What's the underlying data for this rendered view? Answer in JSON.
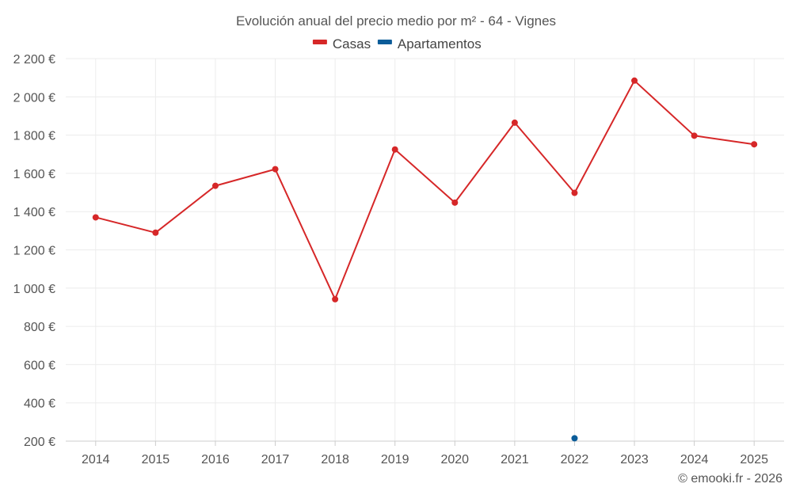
{
  "chart_data": {
    "type": "line",
    "title": "Evolución anual del precio medio por m² - 64 - Vignes",
    "xlabel": "",
    "ylabel": "",
    "categories": [
      "2014",
      "2015",
      "2016",
      "2017",
      "2018",
      "2019",
      "2020",
      "2021",
      "2022",
      "2023",
      "2024",
      "2025"
    ],
    "series": [
      {
        "name": "Casas",
        "color": "#d62728",
        "values": [
          1370,
          1290,
          1535,
          1622,
          942,
          1725,
          1447,
          1865,
          1498,
          2085,
          1797,
          1752
        ]
      },
      {
        "name": "Apartamentos",
        "color": "#0b5c99",
        "values": [
          null,
          null,
          null,
          null,
          null,
          null,
          null,
          null,
          215,
          null,
          null,
          null
        ]
      }
    ],
    "ylim": [
      200,
      2200
    ],
    "yticks": [
      200,
      400,
      600,
      800,
      1000,
      1200,
      1400,
      1600,
      1800,
      2000,
      2200
    ],
    "ytick_labels": [
      "200 €",
      "400 €",
      "600 €",
      "800 €",
      "1 000 €",
      "1 200 €",
      "1 400 €",
      "1 600 €",
      "1 800 €",
      "2 000 €",
      "2 200 €"
    ],
    "grid": true,
    "legend_position": "top-center"
  },
  "credit": "© emooki.fr - 2026"
}
